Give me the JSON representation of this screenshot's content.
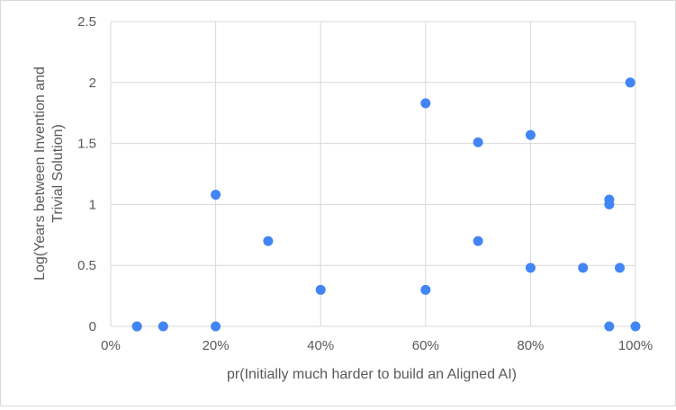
{
  "chart_data": {
    "type": "scatter",
    "title": "",
    "xlabel": "pr(Initially much harder to build an Aligned AI)",
    "ylabel_lines": [
      "Log(Years between Invention and",
      "Trivial Solution)"
    ],
    "xlim": [
      0,
      1
    ],
    "ylim": [
      0,
      2.5
    ],
    "x_ticks": [
      0,
      0.2,
      0.4,
      0.6,
      0.8,
      1.0
    ],
    "x_tick_labels": [
      "0%",
      "20%",
      "40%",
      "60%",
      "80%",
      "100%"
    ],
    "y_ticks": [
      0,
      0.5,
      1,
      1.5,
      2,
      2.5
    ],
    "y_tick_labels": [
      "0",
      "0.5",
      "1",
      "1.5",
      "2",
      "2.5"
    ],
    "grid": true,
    "legend": "none",
    "marker_color": "#4285f4",
    "points": [
      {
        "x": 0.05,
        "y": 0
      },
      {
        "x": 0.05,
        "y": 0
      },
      {
        "x": 0.1,
        "y": 0
      },
      {
        "x": 0.2,
        "y": 0
      },
      {
        "x": 0.2,
        "y": 1.08
      },
      {
        "x": 0.3,
        "y": 0.7
      },
      {
        "x": 0.4,
        "y": 0.3
      },
      {
        "x": 0.6,
        "y": 1.83
      },
      {
        "x": 0.6,
        "y": 0.3
      },
      {
        "x": 0.7,
        "y": 1.51
      },
      {
        "x": 0.7,
        "y": 0.7
      },
      {
        "x": 0.8,
        "y": 1.57
      },
      {
        "x": 0.8,
        "y": 0.48
      },
      {
        "x": 0.9,
        "y": 0.48
      },
      {
        "x": 0.95,
        "y": 1.04
      },
      {
        "x": 0.95,
        "y": 1.0
      },
      {
        "x": 0.95,
        "y": 0
      },
      {
        "x": 0.97,
        "y": 0.48
      },
      {
        "x": 0.99,
        "y": 2.0
      },
      {
        "x": 1.0,
        "y": 0
      }
    ]
  }
}
